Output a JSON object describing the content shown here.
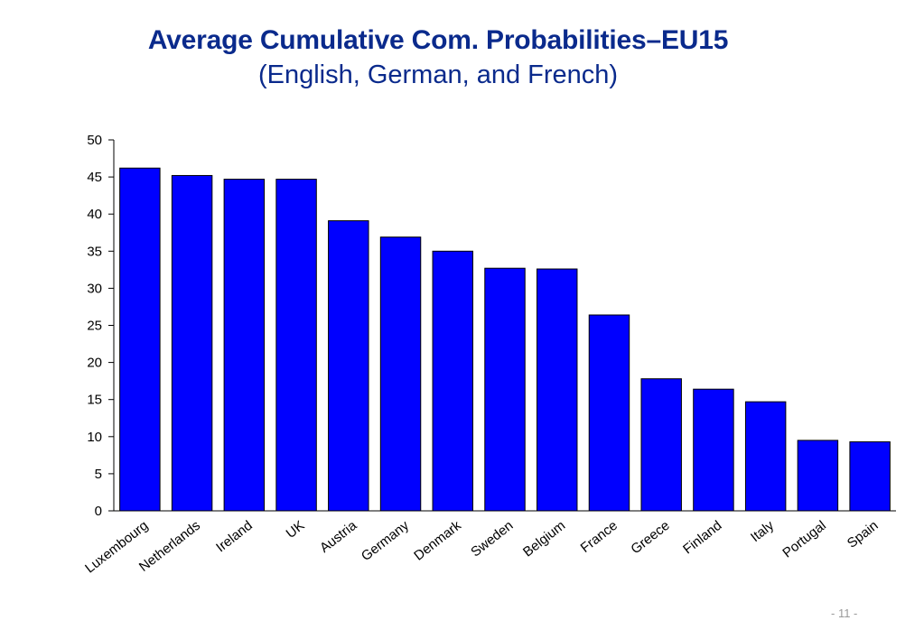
{
  "chart_data": {
    "type": "bar",
    "title": "Average Cumulative Com. Probabilities–EU15",
    "subtitle": "(English, German, and French)",
    "xlabel": "",
    "ylabel": "",
    "categories": [
      "Luxembourg",
      "Netherlands",
      "Ireland",
      "UK",
      "Austria",
      "Germany",
      "Denmark",
      "Sweden",
      "Belgium",
      "France",
      "Greece",
      "Finland",
      "Italy",
      "Portugal",
      "Spain"
    ],
    "values": [
      46.2,
      45.2,
      44.7,
      44.7,
      39.1,
      36.9,
      35.0,
      32.7,
      32.6,
      26.4,
      17.8,
      16.4,
      14.7,
      9.5,
      9.3
    ],
    "ylim": [
      0,
      50
    ],
    "yticks": [
      "0",
      "5",
      "10",
      "15",
      "20",
      "25",
      "30",
      "35",
      "40",
      "45",
      "50"
    ],
    "grid": false,
    "legend": "none",
    "bar_color": "#0000ff",
    "bar_edge_color": "#000000"
  },
  "footer": {
    "page_number": "- 11 -"
  },
  "colors": {
    "title": "#0a2a8c",
    "page_number": "#9a9a9a"
  }
}
